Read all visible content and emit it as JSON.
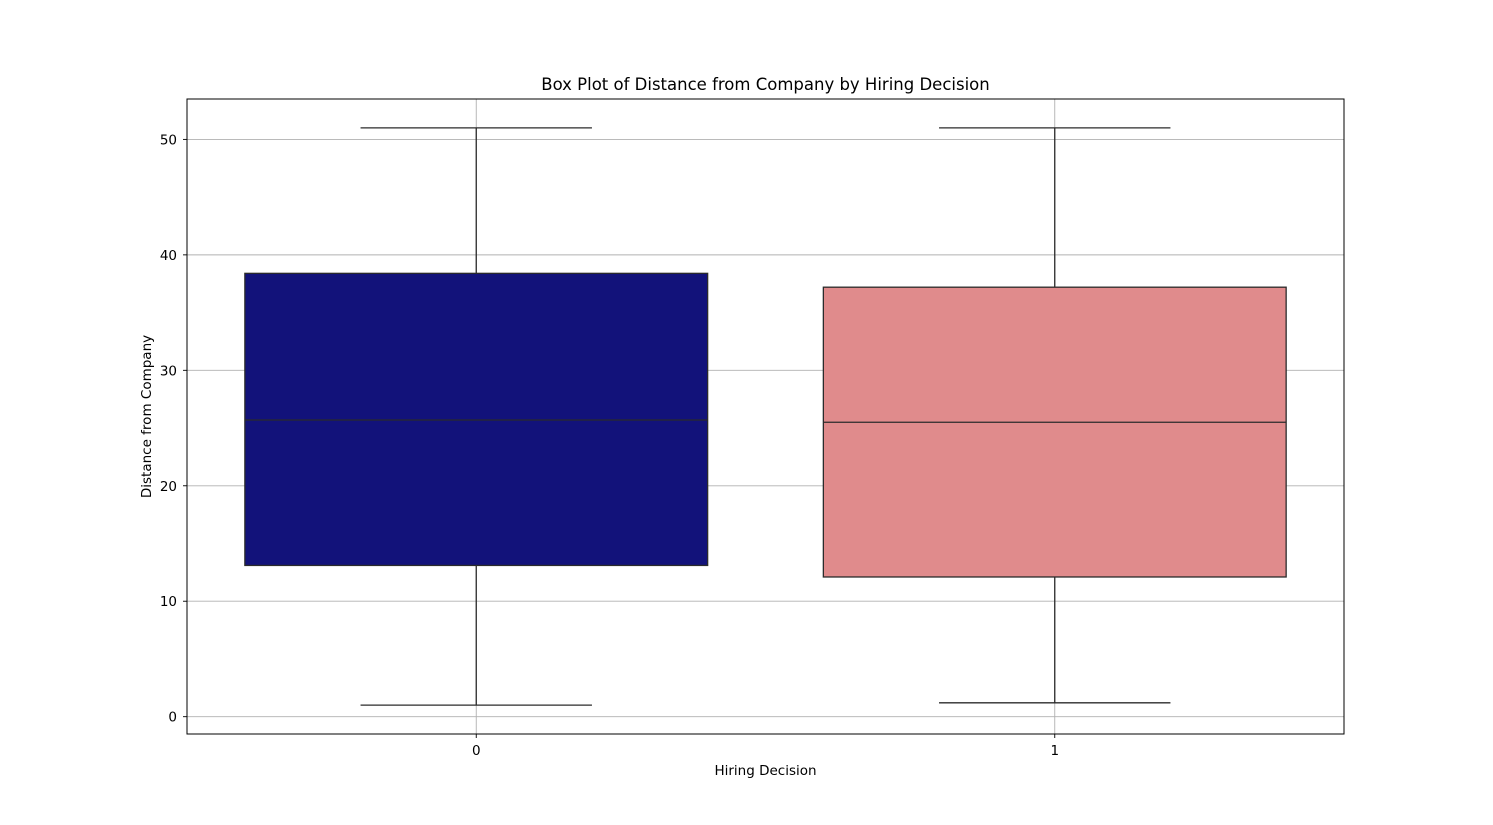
{
  "chart_data": {
    "type": "box",
    "title": "Box Plot of Distance from Company by Hiring Decision",
    "xlabel": "Hiring Decision",
    "ylabel": "Distance from Company",
    "categories": [
      "0",
      "1"
    ],
    "boxes": [
      {
        "category": "0",
        "whisker_low": 1.0,
        "q1": 13.1,
        "median": 25.7,
        "q3": 38.4,
        "whisker_high": 51.0,
        "color": "#12127a"
      },
      {
        "category": "1",
        "whisker_low": 1.2,
        "q1": 12.1,
        "median": 25.5,
        "q3": 37.2,
        "whisker_high": 51.0,
        "color": "#e08b8c"
      }
    ],
    "yticks": [
      0,
      10,
      20,
      30,
      40,
      50
    ],
    "ylim": [
      -1.5,
      53.5
    ],
    "grid": true,
    "colors": {
      "line": "#2b2b2b",
      "grid": "#b0b0b0",
      "frame": "#000000"
    }
  }
}
